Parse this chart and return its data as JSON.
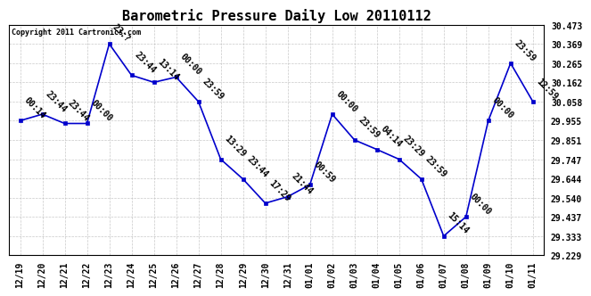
{
  "title": "Barometric Pressure Daily Low 20110112",
  "copyright": "Copyright 2011 Cartronics.com",
  "x_labels": [
    "12/19",
    "12/20",
    "12/21",
    "12/22",
    "12/23",
    "12/24",
    "12/25",
    "12/26",
    "12/27",
    "12/28",
    "12/29",
    "12/30",
    "12/31",
    "01/01",
    "01/02",
    "01/03",
    "01/04",
    "01/05",
    "01/06",
    "01/07",
    "01/08",
    "01/09",
    "01/10",
    "01/11"
  ],
  "y_values": [
    29.955,
    29.99,
    29.94,
    29.94,
    30.369,
    30.2,
    30.162,
    30.19,
    30.058,
    29.747,
    29.64,
    29.51,
    29.545,
    29.61,
    29.99,
    29.851,
    29.8,
    29.747,
    29.64,
    29.333,
    29.437,
    29.955,
    30.265,
    30.058
  ],
  "point_labels": [
    "00:14",
    "23:44",
    "23:44",
    "00:00",
    "23:?",
    "23:44",
    "13:14",
    "00:00",
    "23:59",
    "13:29",
    "23:44",
    "17:29",
    "21:44",
    "00:59",
    "00:00",
    "23:59",
    "04:14",
    "23:29",
    "23:59",
    "15:14",
    "00:00",
    "00:00",
    "23:59",
    "12:59"
  ],
  "y_min": 29.229,
  "y_max": 30.473,
  "y_ticks": [
    29.229,
    29.333,
    29.437,
    29.54,
    29.644,
    29.747,
    29.851,
    29.955,
    30.058,
    30.162,
    30.265,
    30.369,
    30.473
  ],
  "line_color": "#0000cc",
  "marker_color": "#0000cc",
  "bg_color": "#ffffff",
  "grid_color": "#bbbbbb",
  "title_fontsize": 11,
  "tick_fontsize": 7,
  "annot_fontsize": 7,
  "copyright_fontsize": 6
}
